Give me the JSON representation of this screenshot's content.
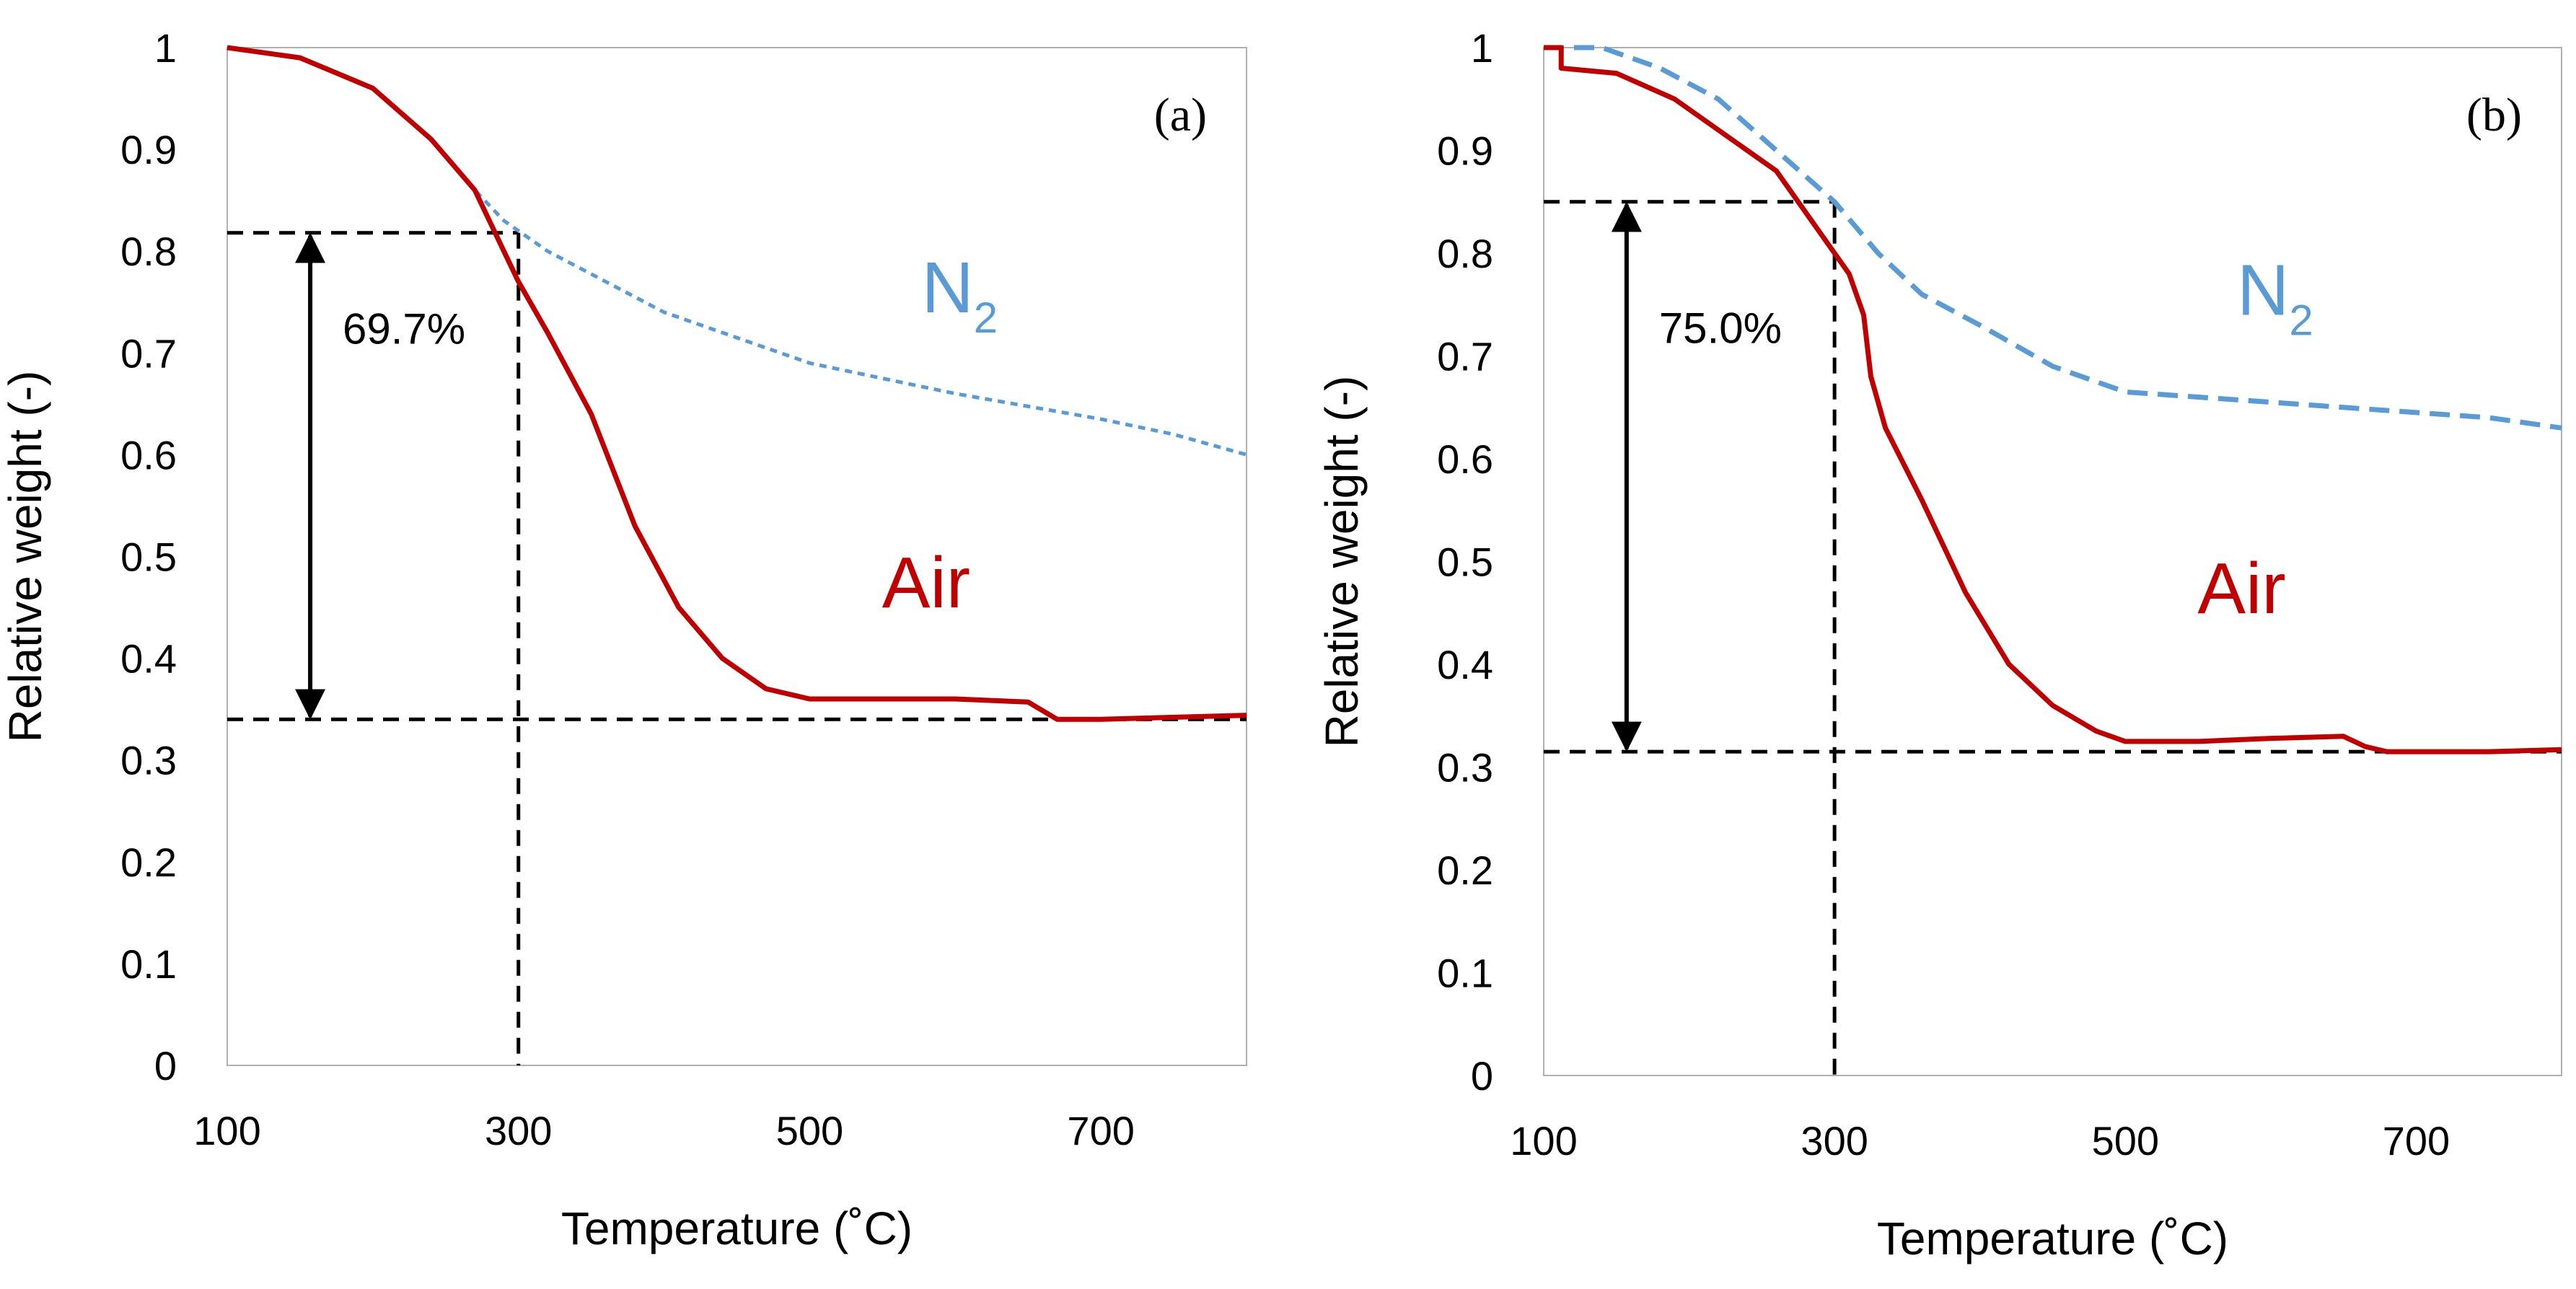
{
  "chart_data": [
    {
      "type": "line",
      "panel_label": "(a)",
      "xlabel": "Temperature (˚C)",
      "ylabel": "Relative weight (-)",
      "xlim": [
        100,
        800
      ],
      "ylim": [
        0,
        1
      ],
      "x_ticks": [
        100,
        300,
        500,
        700
      ],
      "y_ticks": [
        "0",
        "0.1",
        "0.2",
        "0.3",
        "0.4",
        "0.5",
        "0.6",
        "0.7",
        "0.8",
        "0.9",
        "1"
      ],
      "series": [
        {
          "name": "N2",
          "label_main": "N",
          "label_sub": "2",
          "color": "#5b9bd5",
          "style": "dotted",
          "points": [
            [
              100,
              1.0
            ],
            [
              150,
              0.99
            ],
            [
              200,
              0.96
            ],
            [
              240,
              0.91
            ],
            [
              270,
              0.86
            ],
            [
              290,
              0.83
            ],
            [
              320,
              0.8
            ],
            [
              400,
              0.74
            ],
            [
              500,
              0.69
            ],
            [
              600,
              0.66
            ],
            [
              700,
              0.635
            ],
            [
              750,
              0.62
            ],
            [
              800,
              0.6
            ]
          ]
        },
        {
          "name": "Air",
          "label_main": "Air",
          "label_sub": "",
          "color": "#c00000",
          "style": "solid",
          "points": [
            [
              100,
              1.0
            ],
            [
              150,
              0.99
            ],
            [
              200,
              0.96
            ],
            [
              240,
              0.91
            ],
            [
              270,
              0.86
            ],
            [
              290,
              0.8
            ],
            [
              300,
              0.77
            ],
            [
              320,
              0.72
            ],
            [
              350,
              0.64
            ],
            [
              380,
              0.53
            ],
            [
              410,
              0.45
            ],
            [
              440,
              0.4
            ],
            [
              470,
              0.37
            ],
            [
              500,
              0.36
            ],
            [
              550,
              0.36
            ],
            [
              600,
              0.36
            ],
            [
              650,
              0.357
            ],
            [
              670,
              0.34
            ],
            [
              700,
              0.34
            ],
            [
              750,
              0.342
            ],
            [
              800,
              0.344
            ]
          ]
        }
      ],
      "annotation": {
        "text": "69.7%",
        "arrow_x": 157,
        "upper_y": 0.818,
        "lower_y": 0.34,
        "vline_x": 300,
        "vline_top": 0.818
      },
      "series_labels": [
        {
          "series": "N2",
          "x": 603,
          "y": 0.74
        },
        {
          "series": "Air",
          "x": 580,
          "y": 0.45
        }
      ]
    },
    {
      "type": "line",
      "panel_label": "(b)",
      "xlabel": "Temperature (˚C)",
      "ylabel": "Relative weight (-)",
      "xlim": [
        100,
        800
      ],
      "ylim": [
        0,
        1
      ],
      "x_ticks": [
        100,
        300,
        500,
        700
      ],
      "y_ticks": [
        "0",
        "0.1",
        "0.2",
        "0.3",
        "0.4",
        "0.5",
        "0.6",
        "0.7",
        "0.8",
        "0.9",
        "1"
      ],
      "series": [
        {
          "name": "N2",
          "label_main": "N",
          "label_sub": "2",
          "color": "#5b9bd5",
          "style": "dashed",
          "points": [
            [
              100,
              1.0
            ],
            [
              140,
              1.0
            ],
            [
              180,
              0.98
            ],
            [
              220,
              0.95
            ],
            [
              260,
              0.9
            ],
            [
              300,
              0.85
            ],
            [
              330,
              0.8
            ],
            [
              360,
              0.76
            ],
            [
              400,
              0.73
            ],
            [
              450,
              0.69
            ],
            [
              500,
              0.665
            ],
            [
              550,
              0.66
            ],
            [
              600,
              0.655
            ],
            [
              650,
              0.65
            ],
            [
              700,
              0.645
            ],
            [
              750,
              0.64
            ],
            [
              800,
              0.63
            ]
          ]
        },
        {
          "name": "Air",
          "label_main": "Air",
          "label_sub": "",
          "color": "#c00000",
          "style": "solid",
          "points": [
            [
              100,
              1.0
            ],
            [
              112,
              1.0
            ],
            [
              112,
              0.98
            ],
            [
              150,
              0.975
            ],
            [
              190,
              0.95
            ],
            [
              210,
              0.93
            ],
            [
              230,
              0.91
            ],
            [
              260,
              0.88
            ],
            [
              290,
              0.82
            ],
            [
              310,
              0.78
            ],
            [
              320,
              0.74
            ],
            [
              325,
              0.68
            ],
            [
              335,
              0.63
            ],
            [
              360,
              0.56
            ],
            [
              390,
              0.47
            ],
            [
              420,
              0.4
            ],
            [
              450,
              0.36
            ],
            [
              480,
              0.335
            ],
            [
              500,
              0.325
            ],
            [
              550,
              0.325
            ],
            [
              600,
              0.328
            ],
            [
              650,
              0.33
            ],
            [
              665,
              0.32
            ],
            [
              680,
              0.315
            ],
            [
              750,
              0.315
            ],
            [
              800,
              0.317
            ]
          ]
        }
      ],
      "annotation": {
        "text": "75.0%",
        "arrow_x": 157,
        "upper_y": 0.85,
        "lower_y": 0.315,
        "vline_x": 300,
        "vline_top": 0.85
      },
      "series_labels": [
        {
          "series": "N2",
          "x": 603,
          "y": 0.74
        },
        {
          "series": "Air",
          "x": 580,
          "y": 0.45
        }
      ]
    }
  ]
}
